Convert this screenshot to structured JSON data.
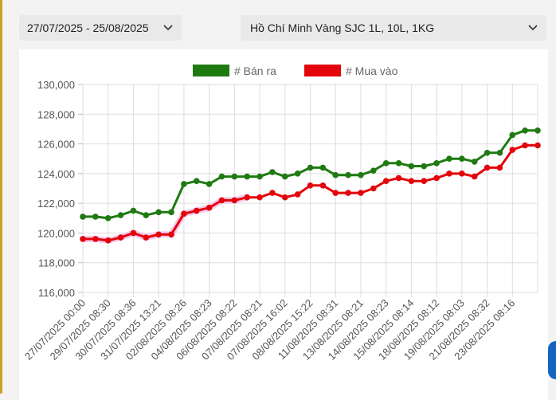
{
  "filters": {
    "date_range": "27/07/2025 - 25/08/2025",
    "gold_type": "Hồ Chí Minh Vàng SJC 1L, 10L, 1KG"
  },
  "icons": {
    "dropdown": "chevron-down-icon"
  },
  "colors": {
    "sell": "#1f7a12",
    "buy": "#e3050b",
    "grid": "#dddddd"
  },
  "chart_data": {
    "type": "line",
    "title": "",
    "xlabel": "",
    "ylabel": "",
    "ylim": [
      116000,
      130000
    ],
    "yticks": [
      116000,
      118000,
      120000,
      122000,
      124000,
      126000,
      128000,
      130000
    ],
    "ytick_labels": [
      "116,000",
      "118,000",
      "120,000",
      "122,000",
      "124,000",
      "126,000",
      "128,000",
      "130,000"
    ],
    "legend_position": "top",
    "grid": true,
    "xtick_labels": [
      "27/07/2025 00:00",
      "29/07/2025 08:30",
      "30/07/2025 08:36",
      "31/07/2025 13:21",
      "02/08/2025 08:26",
      "04/08/2025 08:23",
      "06/08/2025 08:22",
      "07/08/2025 08:21",
      "07/08/2025 16:02",
      "08/08/2025 15:22",
      "11/08/2025 08:31",
      "13/08/2025 08:21",
      "14/08/2025 08:23",
      "15/08/2025 08:14",
      "18/08/2025 08:12",
      "19/08/2025 08:03",
      "21/08/2025 08:32",
      "23/08/2025 08:16"
    ],
    "point_count": 37,
    "series": [
      {
        "name": "# Bán ra",
        "values": [
          121100,
          121100,
          121000,
          121200,
          121500,
          121200,
          121400,
          121400,
          123300,
          123500,
          123300,
          123800,
          123800,
          123800,
          123800,
          124100,
          123800,
          124000,
          124400,
          124400,
          123900,
          123900,
          123900,
          124200,
          124700,
          124700,
          124500,
          124500,
          124700,
          125000,
          125000,
          124800,
          125400,
          125400,
          126600,
          126900,
          126900
        ]
      },
      {
        "name": "# Mua vào",
        "values": [
          119600,
          119600,
          119500,
          119700,
          120000,
          119700,
          119900,
          119900,
          121300,
          121500,
          121700,
          122200,
          122200,
          122400,
          122400,
          122700,
          122400,
          122600,
          123200,
          123200,
          122700,
          122700,
          122700,
          123000,
          123500,
          123700,
          123500,
          123500,
          123700,
          124000,
          124000,
          123800,
          124400,
          124400,
          125600,
          125900,
          125900
        ]
      }
    ]
  }
}
